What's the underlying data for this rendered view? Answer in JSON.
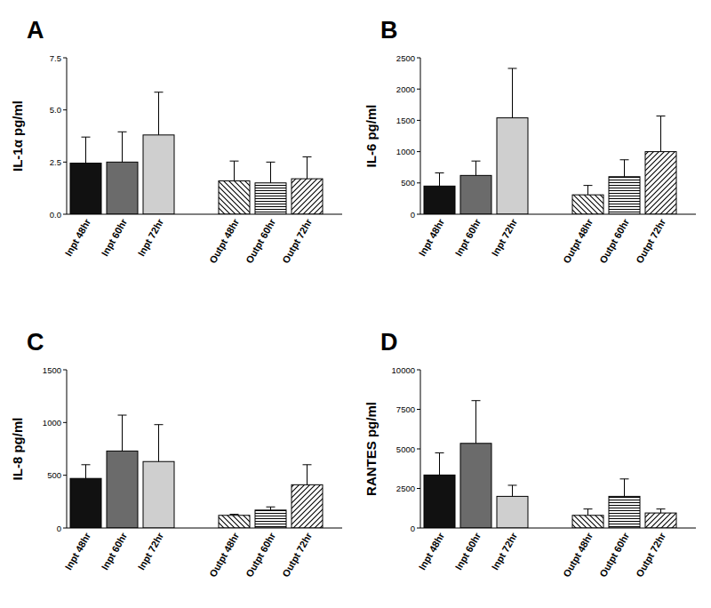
{
  "chart_data": [
    {
      "type": "bar",
      "title": "A",
      "y_label": "IL-1α pg/ml",
      "categories": [
        "Inpt 48hr",
        "Inpt 60hr",
        "Inpt 72hr",
        "Outpt 48hr",
        "Outpt 60hr",
        "Outpt 72hr"
      ],
      "values": [
        2.45,
        2.5,
        3.8,
        1.6,
        1.5,
        1.7
      ],
      "errors": [
        1.25,
        1.45,
        2.05,
        0.95,
        1.0,
        1.05
      ],
      "colors": [
        "#111111",
        "#6b6b6b",
        "#cfcfcf",
        "#ffffff",
        "#ffffff",
        "#ffffff"
      ],
      "ylim": [
        0,
        7.5
      ],
      "yticks": [
        {
          "value": 0,
          "label": "0.0"
        },
        {
          "value": 2.5,
          "label": "2.5"
        },
        {
          "value": 5,
          "label": "5.0"
        },
        {
          "value": 7.5,
          "label": "7.5"
        }
      ]
    },
    {
      "type": "bar",
      "title": "B",
      "y_label": "IL-6 pg/ml",
      "categories": [
        "Inpt 48hr",
        "Inpt 60hr",
        "Inpt 72hr",
        "Outpt 48hr",
        "Outpt 60hr",
        "Outpt 72hr"
      ],
      "values": [
        450,
        620,
        1540,
        310,
        600,
        1000
      ],
      "errors": [
        210,
        230,
        790,
        150,
        270,
        570
      ],
      "colors": [
        "#111111",
        "#6b6b6b",
        "#cfcfcf",
        "#ffffff",
        "#ffffff",
        "#ffffff"
      ],
      "ylim": [
        0,
        2500
      ],
      "yticks": [
        0,
        500,
        1000,
        1500,
        2000,
        2500
      ]
    },
    {
      "type": "bar",
      "title": "C",
      "y_label": "IL-8 pg/ml",
      "categories": [
        "Inpt 48hr",
        "Inpt 60hr",
        "Inpt 72hr",
        "Outpt 48hr",
        "Outpt 60hr",
        "Outpt 72hr"
      ],
      "values": [
        470,
        730,
        630,
        120,
        170,
        410
      ],
      "errors": [
        130,
        340,
        350,
        10,
        30,
        190
      ],
      "colors": [
        "#111111",
        "#6b6b6b",
        "#cfcfcf",
        "#ffffff",
        "#ffffff",
        "#ffffff"
      ],
      "ylim": [
        0,
        1500
      ],
      "yticks": [
        0,
        500,
        1000,
        1500
      ]
    },
    {
      "type": "bar",
      "title": "D",
      "y_label": "RANTES pg/ml",
      "categories": [
        "Inpt 48hr",
        "Inpt 60hr",
        "Inpt 72hr",
        "Outpt 48hr",
        "Outpt 60hr",
        "Outpt 72hr"
      ],
      "values": [
        3350,
        5350,
        2000,
        800,
        2000,
        950
      ],
      "errors": [
        1400,
        2700,
        700,
        400,
        1100,
        250
      ],
      "colors": [
        "#111111",
        "#6b6b6b",
        "#cfcfcf",
        "#ffffff",
        "#ffffff",
        "#ffffff"
      ],
      "ylim": [
        0,
        10000
      ],
      "yticks": [
        0,
        2500,
        5000,
        7500,
        10000
      ]
    }
  ]
}
